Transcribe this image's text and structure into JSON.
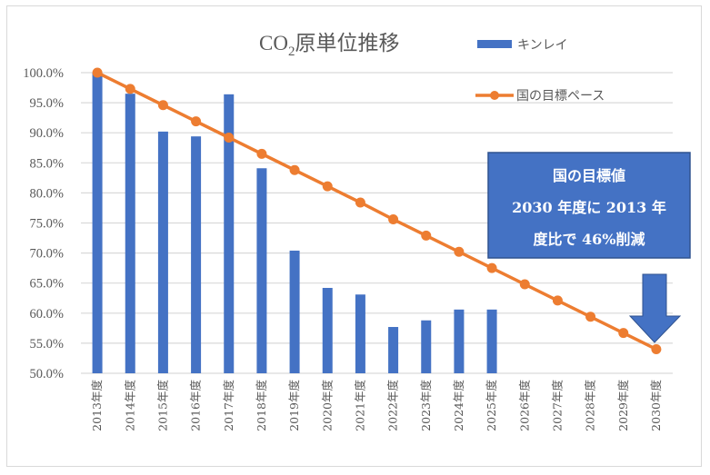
{
  "chart_data": {
    "type": "bar+line",
    "title_main": "CO",
    "title_sub": "2",
    "title_rest": "原単位推移",
    "title": "CO2原単位推移",
    "xlabel": "",
    "ylabel": "",
    "ylim": [
      0.5,
      1.0
    ],
    "y_ticks": [
      "100.0%",
      "95.0%",
      "90.0%",
      "85.0%",
      "80.0%",
      "75.0%",
      "70.0%",
      "65.0%",
      "60.0%",
      "55.0%",
      "50.0%"
    ],
    "y_tick_values": [
      1.0,
      0.95,
      0.9,
      0.85,
      0.8,
      0.75,
      0.7,
      0.65,
      0.6,
      0.55,
      0.5
    ],
    "grid": true,
    "legend_position": "top-right",
    "categories": [
      "2013年度",
      "2014年度",
      "2015年度",
      "2016年度",
      "2017年度",
      "2018年度",
      "2019年度",
      "2020年度",
      "2021年度",
      "2022年度",
      "2023年度",
      "2024年度",
      "2025年度",
      "2026年度",
      "2027年度",
      "2028年度",
      "2029年度",
      "2030年度"
    ],
    "series": [
      {
        "name": "キンレイ",
        "type": "bar",
        "color": "#4472c4",
        "values": [
          1.0,
          0.965,
          0.902,
          0.894,
          0.964,
          0.841,
          0.704,
          0.642,
          0.631,
          0.577,
          0.588,
          0.606,
          0.606,
          null,
          null,
          null,
          null,
          null
        ]
      },
      {
        "name": "国の目標ペース",
        "type": "line",
        "color": "#ed7d31",
        "values": [
          1.0,
          0.973,
          0.946,
          0.919,
          0.892,
          0.865,
          0.838,
          0.811,
          0.784,
          0.756,
          0.729,
          0.702,
          0.675,
          0.648,
          0.621,
          0.594,
          0.567,
          0.54
        ]
      }
    ],
    "annotation": {
      "lines": [
        "国の目標値",
        "2030 年度に 2013 年",
        "度比で 46%削減"
      ],
      "fill": "#4472c4",
      "arrow": "down-arrow pointing to 2030年度"
    }
  }
}
